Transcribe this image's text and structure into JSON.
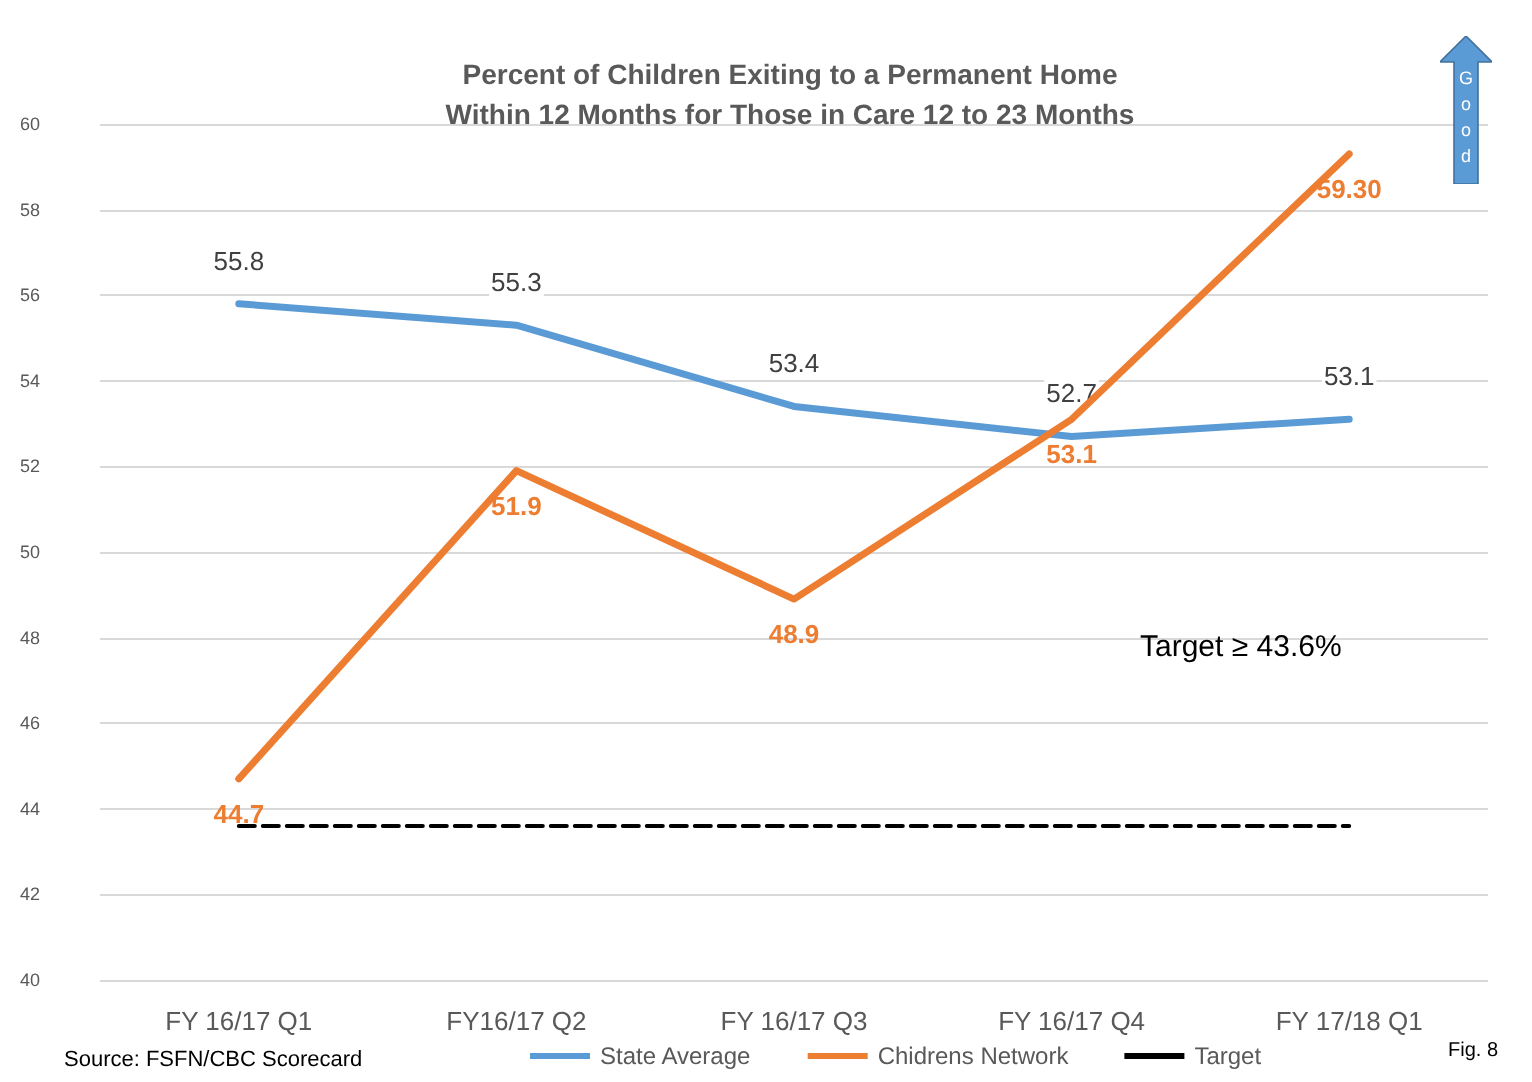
{
  "chart_data": {
    "type": "line",
    "title": "Percent of Children Exiting to a Permanent Home\nWithin 12 Months for Those in Care 12 to 23 Months",
    "categories": [
      "FY 16/17 Q1",
      "FY16/17 Q2",
      "FY 16/17 Q3",
      "FY 16/17 Q4",
      "FY 17/18 Q1"
    ],
    "series": [
      {
        "name": "State Average",
        "color": "#5b9bd5",
        "values": [
          55.8,
          55.3,
          53.4,
          52.7,
          53.1
        ],
        "value_labels": [
          "55.8",
          "55.3",
          "53.4",
          "52.7",
          "53.1"
        ]
      },
      {
        "name": "Chidrens Network",
        "color": "#ed7d31",
        "values": [
          44.7,
          51.9,
          48.9,
          53.1,
          59.3
        ],
        "value_labels": [
          "44.7",
          "51.9",
          "48.9",
          "53.1",
          "59.30"
        ]
      },
      {
        "name": "Target",
        "color": "#000000",
        "line_style": "dashed",
        "values": [
          43.6,
          43.6,
          43.6,
          43.6,
          43.6
        ]
      }
    ],
    "ylim": [
      40,
      60
    ],
    "yticks": [
      40,
      42,
      44,
      46,
      48,
      50,
      52,
      54,
      56,
      58,
      60
    ],
    "grid": "y",
    "legend": "bottom",
    "marker": "none",
    "annotations": [
      "Source: FSFN/CBC Scorecard",
      "Target  ≥ 43.6%",
      "Fig. 8",
      "Good"
    ]
  }
}
